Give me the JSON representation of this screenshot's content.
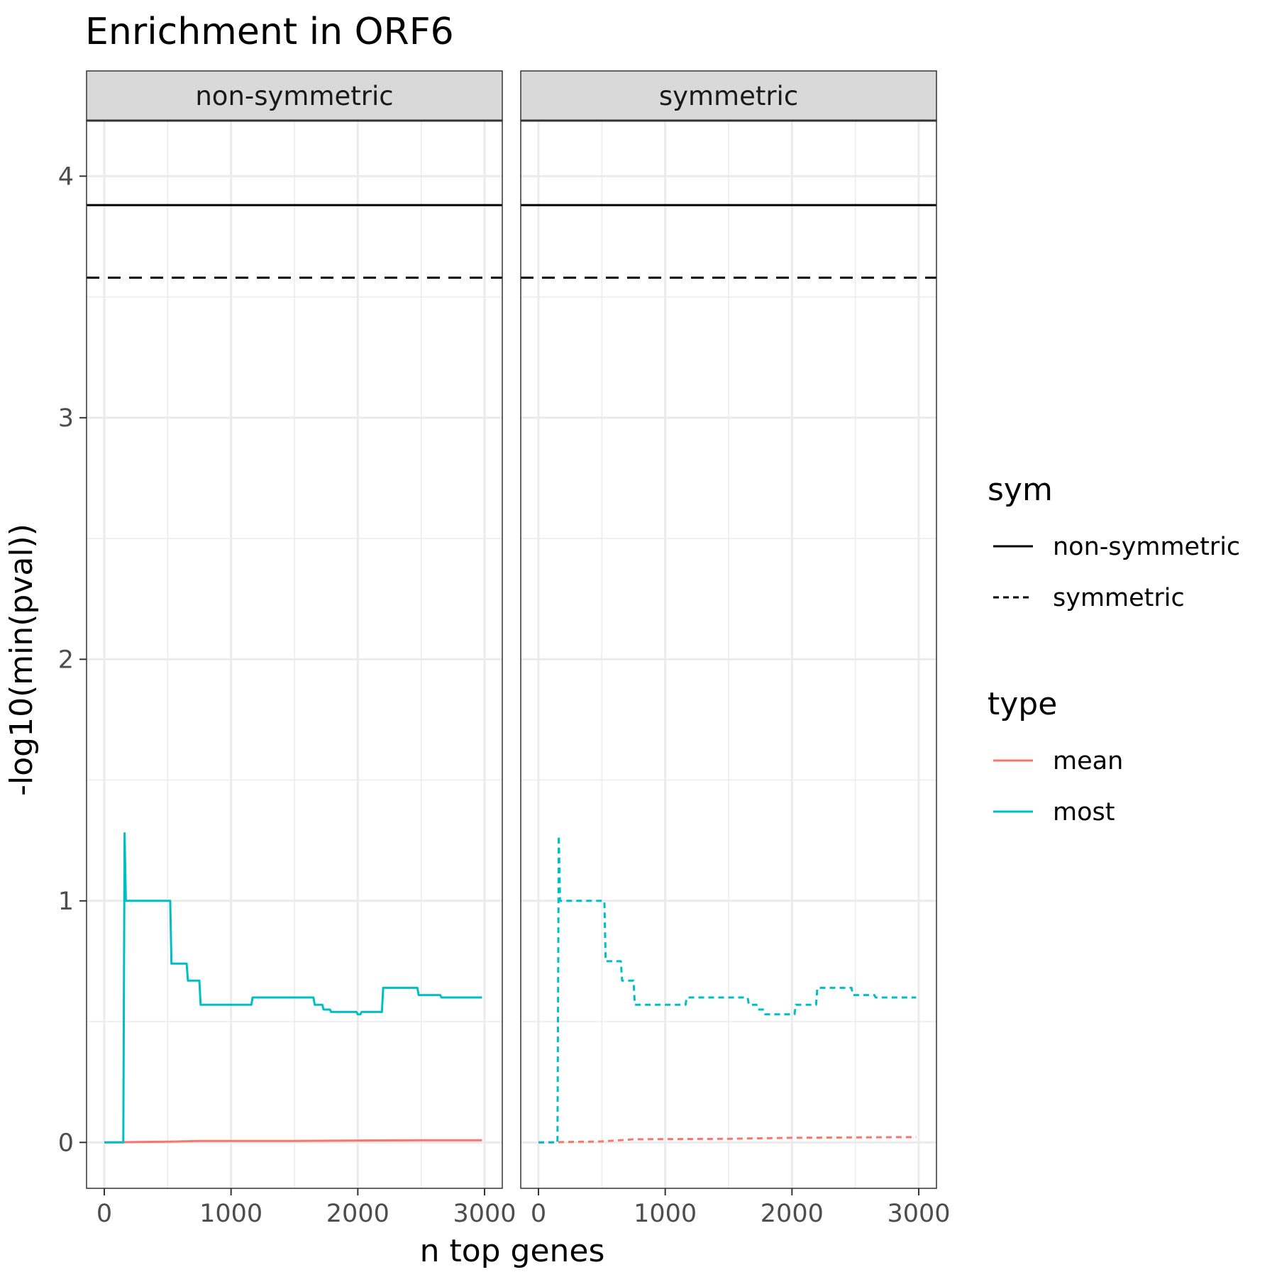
{
  "chart_data": {
    "type": "line",
    "title": "Enrichment in ORF6",
    "xlabel": "n top genes",
    "ylabel": "-log10(min(pval))",
    "xlim": [
      -140,
      3140
    ],
    "ylim": [
      -0.19,
      4.23
    ],
    "x_ticks": [
      0,
      1000,
      2000,
      3000
    ],
    "y_ticks": [
      0,
      1,
      2,
      3,
      4
    ],
    "x_tick_labels": [
      "0",
      "1000",
      "2000",
      "3000"
    ],
    "y_tick_labels": [
      "0",
      "1",
      "2",
      "3",
      "4"
    ],
    "grid": true,
    "facets": [
      {
        "label": "non-symmetric",
        "reference_lines": [
          {
            "sym": "non-symmetric",
            "y": 3.88
          },
          {
            "sym": "symmetric",
            "y": 3.58
          }
        ],
        "series": [
          {
            "type": "most",
            "sym": "non-symmetric",
            "x": [
              0,
              150,
              160,
              170,
              520,
              530,
              650,
              660,
              750,
              760,
              1160,
              1170,
              1650,
              1660,
              1720,
              1730,
              1780,
              1790,
              1990,
              2000,
              2020,
              2030,
              2190,
              2200,
              2470,
              2480,
              2650,
              2660,
              2980
            ],
            "y": [
              0,
              0,
              1.28,
              1.0,
              1.0,
              0.74,
              0.74,
              0.67,
              0.67,
              0.57,
              0.57,
              0.6,
              0.6,
              0.57,
              0.57,
              0.55,
              0.55,
              0.54,
              0.54,
              0.53,
              0.53,
              0.54,
              0.54,
              0.64,
              0.64,
              0.61,
              0.61,
              0.6,
              0.6
            ]
          },
          {
            "type": "mean",
            "sym": "non-symmetric",
            "x": [
              0,
              500,
              750,
              1500,
              2000,
              2500,
              2980
            ],
            "y": [
              0,
              0.003,
              0.006,
              0.006,
              0.008,
              0.009,
              0.009
            ]
          }
        ]
      },
      {
        "label": "symmetric",
        "reference_lines": [
          {
            "sym": "non-symmetric",
            "y": 3.88
          },
          {
            "sym": "symmetric",
            "y": 3.58
          }
        ],
        "series": [
          {
            "type": "most",
            "sym": "symmetric",
            "x": [
              0,
              150,
              160,
              170,
              520,
              530,
              650,
              660,
              750,
              760,
              1160,
              1170,
              1650,
              1660,
              1720,
              1730,
              1780,
              1790,
              1990,
              2000,
              2020,
              2030,
              2190,
              2200,
              2470,
              2480,
              2650,
              2660,
              2980
            ],
            "y": [
              0,
              0,
              1.27,
              1.0,
              1.0,
              0.75,
              0.75,
              0.67,
              0.67,
              0.57,
              0.57,
              0.6,
              0.6,
              0.57,
              0.57,
              0.55,
              0.55,
              0.53,
              0.53,
              0.53,
              0.53,
              0.57,
              0.57,
              0.64,
              0.64,
              0.61,
              0.61,
              0.6,
              0.6
            ]
          },
          {
            "type": "mean",
            "sym": "symmetric",
            "x": [
              0,
              500,
              750,
              1500,
              2000,
              2500,
              2980
            ],
            "y": [
              0,
              0.004,
              0.013,
              0.015,
              0.019,
              0.021,
              0.022
            ]
          }
        ]
      }
    ],
    "legends": {
      "sym": {
        "title": "sym",
        "entries": [
          "non-symmetric",
          "symmetric"
        ]
      },
      "type": {
        "title": "type",
        "entries": [
          "mean",
          "most"
        ]
      }
    },
    "colors": {
      "mean": "#F8766D",
      "most": "#00BFC4",
      "reference": "#000000"
    },
    "legend_position": "right"
  }
}
